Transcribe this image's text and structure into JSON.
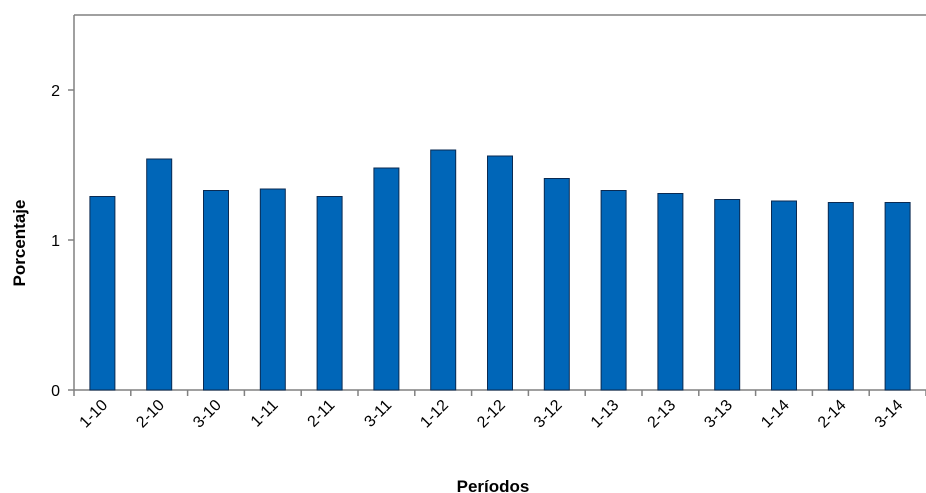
{
  "chart_data": {
    "type": "bar",
    "title": "",
    "xlabel": "Períodos",
    "ylabel": "Porcentaje",
    "categories": [
      "1-10",
      "2-10",
      "3-10",
      "1-11",
      "2-11",
      "3-11",
      "1-12",
      "2-12",
      "3-12",
      "1-13",
      "2-13",
      "3-13",
      "1-14",
      "2-14",
      "3-14"
    ],
    "values": [
      1.29,
      1.54,
      1.33,
      1.34,
      1.29,
      1.48,
      1.6,
      1.56,
      1.41,
      1.33,
      1.31,
      1.27,
      1.26,
      1.25,
      1.25
    ],
    "ylim": [
      0,
      2.5
    ],
    "yticks": [
      0,
      1,
      2
    ],
    "grid": false,
    "legend": "none",
    "bar_color": "#0066b8",
    "bar_edge_color": "#0a2a52"
  }
}
